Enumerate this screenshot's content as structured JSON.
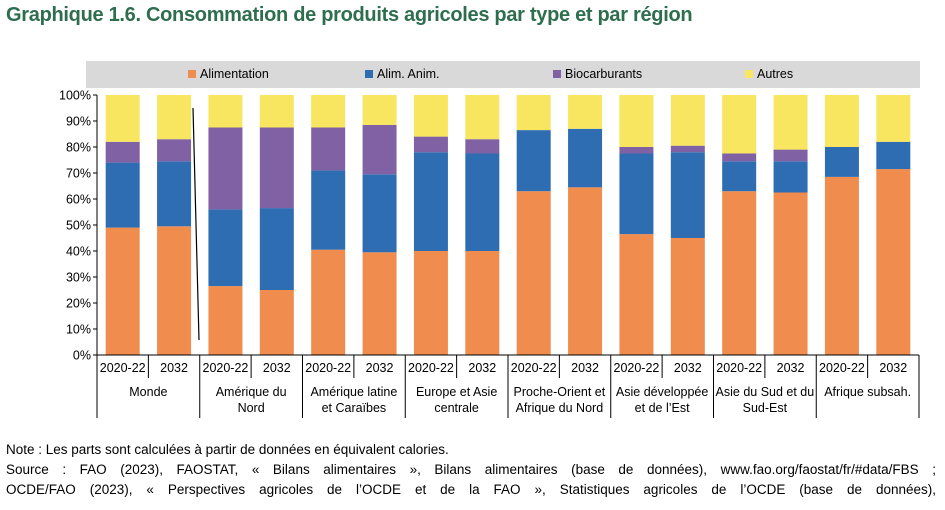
{
  "title": "Graphique 1.6. Consommation de produits agricoles par type et par région",
  "note": "Note : Les parts sont calculées à partir de données en équivalent calories.",
  "source_line_1": "Source : FAO (2023), FAOSTAT, « Bilans alimentaires », Bilans alimentaires (base de données), www.fao.org/faostat/fr/#data/FBS ;",
  "source_line_2": "OCDE/FAO (2023), « Perspectives agricoles de l’OCDE et de la FAO », Statistiques agricoles de l’OCDE (base de données),",
  "chart_data": {
    "type": "bar",
    "stacked": true,
    "percent_axis": true,
    "ylim": [
      0,
      100
    ],
    "yticks": [
      "0%",
      "10%",
      "20%",
      "30%",
      "40%",
      "50%",
      "60%",
      "70%",
      "80%",
      "90%",
      "100%"
    ],
    "legend_position": "top",
    "grid": false,
    "categories": [
      "2020-22",
      "2032",
      "2020-22",
      "2032",
      "2020-22",
      "2032",
      "2020-22",
      "2032",
      "2020-22",
      "2032",
      "2020-22",
      "2032",
      "2020-22",
      "2032",
      "2020-22",
      "2032"
    ],
    "groups": [
      {
        "label": [
          "Monde"
        ]
      },
      {
        "label": [
          "Amérique du",
          "Nord"
        ]
      },
      {
        "label": [
          "Amérique latine",
          "et Caraïbes"
        ]
      },
      {
        "label": [
          "Europe et Asie",
          "centrale"
        ]
      },
      {
        "label": [
          "Proche-Orient et",
          "Afrique du Nord"
        ]
      },
      {
        "label": [
          "Asie développée",
          "et de l’Est"
        ]
      },
      {
        "label": [
          "Asie du Sud et du",
          "Sud-Est"
        ]
      },
      {
        "label": [
          "Afrique subsah."
        ]
      }
    ],
    "series": [
      {
        "name": "Alimentation",
        "color": "#f08c4e",
        "values": [
          49,
          49.5,
          26.5,
          25,
          40.5,
          39.5,
          40,
          40,
          63,
          64.5,
          46.5,
          45,
          63,
          62.5,
          68.5,
          71.5
        ]
      },
      {
        "name": "Alim. Anim.",
        "color": "#2f6db3",
        "values": [
          25,
          25,
          29.5,
          31.5,
          30.5,
          30,
          38,
          37.5,
          23.5,
          22.5,
          31,
          33,
          11.5,
          12,
          11.5,
          10.5
        ]
      },
      {
        "name": "Biocarburants",
        "color": "#8062a4",
        "values": [
          8,
          8.5,
          31.5,
          31,
          16.5,
          19,
          6,
          5.5,
          0,
          0,
          2.5,
          2.5,
          3,
          4.5,
          0,
          0
        ]
      },
      {
        "name": "Autres",
        "color": "#f8e661",
        "values": [
          18,
          17,
          12.5,
          12.5,
          12.5,
          11.5,
          16,
          17,
          13.5,
          13,
          20,
          19.5,
          22.5,
          21,
          20,
          18
        ]
      }
    ]
  }
}
